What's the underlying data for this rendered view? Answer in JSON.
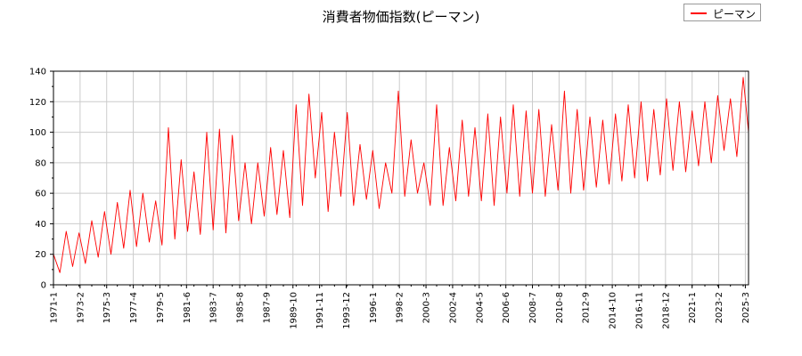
{
  "chart_data": {
    "type": "line",
    "title": "消費者物価指数(ピーマン)",
    "xlabel": "",
    "ylabel": "",
    "ylim": [
      0,
      140
    ],
    "yticks": [
      0,
      20,
      40,
      60,
      80,
      100,
      120,
      140
    ],
    "xlim": [
      "1971-1",
      "2025-6"
    ],
    "xticks": [
      "1971-1",
      "1973-2",
      "1975-3",
      "1977-4",
      "1979-5",
      "1981-6",
      "1983-7",
      "1985-8",
      "1987-9",
      "1989-10",
      "1991-11",
      "1993-12",
      "1996-1",
      "1998-2",
      "2000-3",
      "2002-4",
      "2004-5",
      "2006-6",
      "2008-7",
      "2010-8",
      "2012-9",
      "2014-10",
      "2016-11",
      "2018-12",
      "2021-1",
      "2023-2",
      "2025-3"
    ],
    "grid": true,
    "legend_position": "top-right",
    "series": [
      {
        "name": "ピーマン",
        "color": "#ff0000",
        "x": [
          "1971-1",
          "1971-7",
          "1972-1",
          "1972-7",
          "1973-1",
          "1973-7",
          "1974-1",
          "1974-7",
          "1975-1",
          "1975-7",
          "1976-1",
          "1976-7",
          "1977-1",
          "1977-7",
          "1978-1",
          "1978-7",
          "1979-1",
          "1979-7",
          "1980-1",
          "1980-7",
          "1981-1",
          "1981-7",
          "1982-1",
          "1982-7",
          "1983-1",
          "1983-7",
          "1984-1",
          "1984-7",
          "1985-1",
          "1985-7",
          "1986-1",
          "1986-7",
          "1987-1",
          "1987-7",
          "1988-1",
          "1988-7",
          "1989-1",
          "1989-7",
          "1990-1",
          "1990-7",
          "1991-1",
          "1991-7",
          "1992-1",
          "1992-7",
          "1993-1",
          "1993-7",
          "1994-1",
          "1994-7",
          "1995-1",
          "1995-7",
          "1996-1",
          "1996-7",
          "1997-1",
          "1997-7",
          "1998-1",
          "1998-7",
          "1999-1",
          "1999-7",
          "2000-1",
          "2000-7",
          "2001-1",
          "2001-7",
          "2002-1",
          "2002-7",
          "2003-1",
          "2003-7",
          "2004-1",
          "2004-7",
          "2005-1",
          "2005-7",
          "2006-1",
          "2006-7",
          "2007-1",
          "2007-7",
          "2008-1",
          "2008-7",
          "2009-1",
          "2009-7",
          "2010-1",
          "2010-7",
          "2011-1",
          "2011-7",
          "2012-1",
          "2012-7",
          "2013-1",
          "2013-7",
          "2014-1",
          "2014-7",
          "2015-1",
          "2015-7",
          "2016-1",
          "2016-7",
          "2017-1",
          "2017-7",
          "2018-1",
          "2018-7",
          "2019-1",
          "2019-7",
          "2020-1",
          "2020-7",
          "2021-1",
          "2021-7",
          "2022-1",
          "2022-7",
          "2023-1",
          "2023-7",
          "2024-1",
          "2024-7",
          "2025-1",
          "2025-6"
        ],
        "values": [
          20,
          8,
          35,
          12,
          34,
          14,
          42,
          18,
          48,
          20,
          54,
          24,
          62,
          25,
          60,
          28,
          55,
          26,
          103,
          30,
          82,
          35,
          74,
          33,
          100,
          36,
          102,
          34,
          98,
          42,
          80,
          40,
          80,
          45,
          90,
          46,
          88,
          44,
          118,
          52,
          125,
          70,
          113,
          48,
          100,
          58,
          113,
          52,
          92,
          56,
          88,
          50,
          80,
          60,
          127,
          58,
          95,
          60,
          80,
          52,
          118,
          52,
          90,
          55,
          108,
          58,
          103,
          55,
          112,
          52,
          110,
          60,
          118,
          58,
          114,
          60,
          115,
          58,
          105,
          62,
          127,
          60,
          115,
          62,
          110,
          64,
          108,
          66,
          112,
          68,
          118,
          70,
          120,
          68,
          115,
          72,
          122,
          75,
          120,
          74,
          114,
          78,
          120,
          80,
          124,
          88,
          122,
          84,
          136,
          100
        ]
      }
    ]
  }
}
